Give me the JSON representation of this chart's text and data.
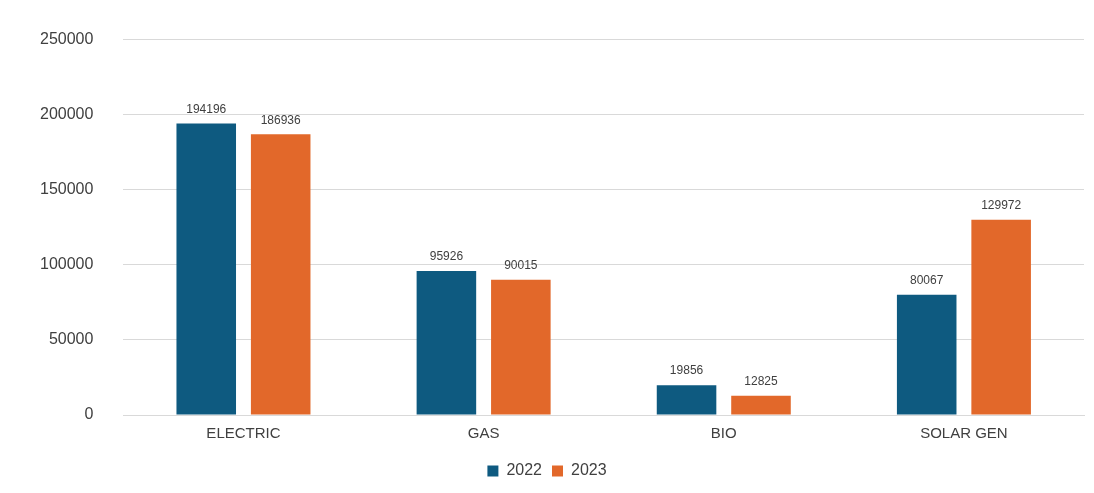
{
  "chart_data": {
    "type": "bar",
    "categories": [
      "ELECTRIC",
      "GAS",
      "BIO",
      "SOLAR GEN"
    ],
    "series": [
      {
        "name": "2022",
        "color": "#0e5a80",
        "values": [
          194196,
          95926,
          19856,
          80067
        ]
      },
      {
        "name": "2023",
        "color": "#e2682a",
        "values": [
          186936,
          90015,
          12825,
          129972
        ]
      }
    ],
    "ylim": [
      0,
      250000
    ],
    "yticks": [
      0,
      50000,
      100000,
      150000,
      200000,
      250000
    ],
    "grid": "y",
    "legend": "bottom",
    "data_labels": true
  }
}
